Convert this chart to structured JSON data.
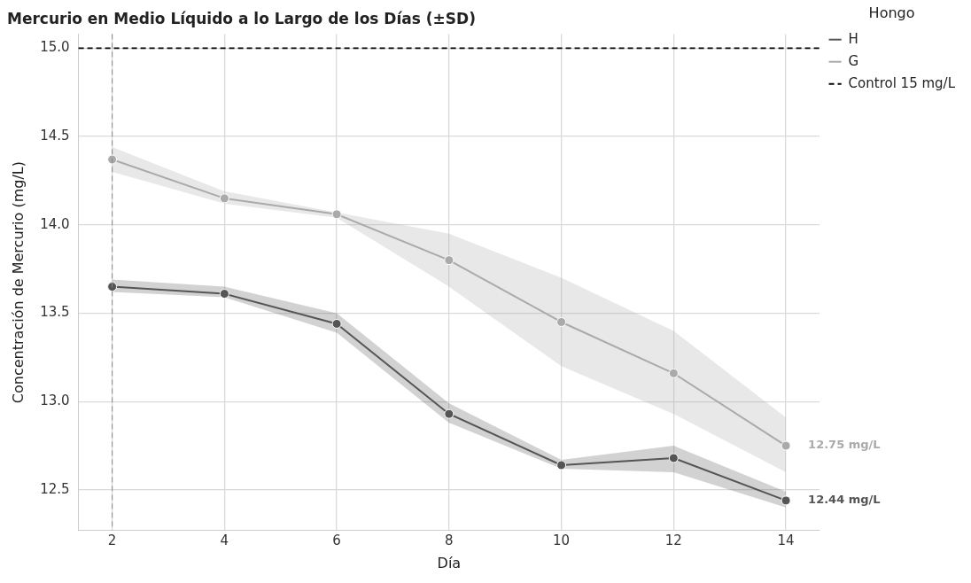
{
  "chart_data": {
    "type": "line",
    "title": "Mercurio en Medio Líquido a lo Largo de los Días (±SD)",
    "xlabel": "Día",
    "ylabel": "Concentración de Mercurio (mg/L)",
    "legend_title": "Hongo",
    "x": [
      2,
      4,
      6,
      8,
      10,
      12,
      14
    ],
    "series": [
      {
        "name": "H",
        "color": "#555555",
        "values": [
          13.65,
          13.61,
          13.44,
          12.93,
          12.64,
          12.68,
          12.44
        ],
        "lower": [
          13.62,
          13.59,
          13.39,
          12.88,
          12.62,
          12.6,
          12.4
        ],
        "upper": [
          13.69,
          13.65,
          13.5,
          12.99,
          12.67,
          12.75,
          12.49
        ]
      },
      {
        "name": "G",
        "color": "#aaaaaa",
        "values": [
          14.37,
          14.15,
          14.06,
          13.8,
          13.45,
          13.16,
          12.75
        ],
        "lower": [
          14.3,
          14.12,
          14.04,
          13.65,
          13.2,
          12.93,
          12.6
        ],
        "upper": [
          14.44,
          14.19,
          14.07,
          13.95,
          13.7,
          13.4,
          12.91
        ]
      }
    ],
    "xlim": [
      1.4,
      14.6
    ],
    "xticks": [
      2,
      4,
      6,
      8,
      10,
      12,
      14
    ],
    "ylim": [
      12.27,
      15.08
    ],
    "yticks": [
      12.5,
      {
        "value": 13,
        "label": "13.0"
      },
      13.5,
      {
        "value": 14,
        "label": "14.0"
      },
      14.5,
      {
        "value": 15,
        "label": "15.0"
      }
    ],
    "ref_lines": [
      {
        "axis": "y",
        "value": 15,
        "label": "Control 15 mg/L",
        "color": "#000000",
        "line_style": "dashed"
      },
      {
        "axis": "x",
        "value": 2,
        "color": "#888888",
        "line_style": "dashed"
      }
    ],
    "annotations": [
      {
        "text": "12.75 mg/L",
        "x": 14,
        "y": 12.75
      },
      {
        "text": "12.44 mg/L",
        "x": 14,
        "y": 12.44
      }
    ],
    "grid": true,
    "legend": "top right",
    "marker": "circle",
    "line_style": "solid"
  }
}
